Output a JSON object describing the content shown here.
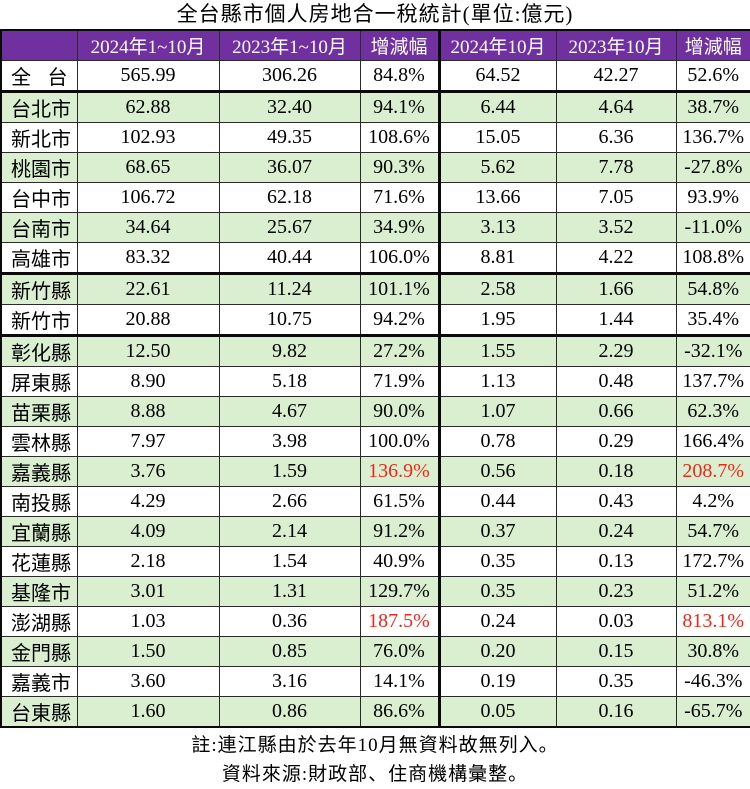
{
  "title": "全台縣市個人房地合一稅統計(單位:億元)",
  "chart_data": {
    "type": "table",
    "title": "全台縣市個人房地合一稅統計(單位:億元)",
    "unit": "億元",
    "columns": [
      "",
      "2024年1~10月",
      "2023年1~10月",
      "增減幅",
      "2024年10月",
      "2023年10月",
      "增減幅"
    ],
    "rows": [
      {
        "label": "全台",
        "cells": [
          "565.99",
          "306.26",
          "84.8%",
          "64.52",
          "42.27",
          "52.6%"
        ],
        "red_cells": [],
        "thick_bottom": true
      },
      {
        "label": "台北市",
        "cells": [
          "62.88",
          "32.40",
          "94.1%",
          "6.44",
          "4.64",
          "38.7%"
        ],
        "red_cells": [],
        "thick_bottom": false
      },
      {
        "label": "新北市",
        "cells": [
          "102.93",
          "49.35",
          "108.6%",
          "15.05",
          "6.36",
          "136.7%"
        ],
        "red_cells": [],
        "thick_bottom": false
      },
      {
        "label": "桃園市",
        "cells": [
          "68.65",
          "36.07",
          "90.3%",
          "5.62",
          "7.78",
          "-27.8%"
        ],
        "red_cells": [],
        "thick_bottom": false
      },
      {
        "label": "台中市",
        "cells": [
          "106.72",
          "62.18",
          "71.6%",
          "13.66",
          "7.05",
          "93.9%"
        ],
        "red_cells": [],
        "thick_bottom": false
      },
      {
        "label": "台南市",
        "cells": [
          "34.64",
          "25.67",
          "34.9%",
          "3.13",
          "3.52",
          "-11.0%"
        ],
        "red_cells": [],
        "thick_bottom": false
      },
      {
        "label": "高雄市",
        "cells": [
          "83.32",
          "40.44",
          "106.0%",
          "8.81",
          "4.22",
          "108.8%"
        ],
        "red_cells": [],
        "thick_bottom": true
      },
      {
        "label": "新竹縣",
        "cells": [
          "22.61",
          "11.24",
          "101.1%",
          "2.58",
          "1.66",
          "54.8%"
        ],
        "red_cells": [],
        "thick_bottom": false
      },
      {
        "label": "新竹市",
        "cells": [
          "20.88",
          "10.75",
          "94.2%",
          "1.95",
          "1.44",
          "35.4%"
        ],
        "red_cells": [],
        "thick_bottom": true
      },
      {
        "label": "彰化縣",
        "cells": [
          "12.50",
          "9.82",
          "27.2%",
          "1.55",
          "2.29",
          "-32.1%"
        ],
        "red_cells": [],
        "thick_bottom": false
      },
      {
        "label": "屏東縣",
        "cells": [
          "8.90",
          "5.18",
          "71.9%",
          "1.13",
          "0.48",
          "137.7%"
        ],
        "red_cells": [],
        "thick_bottom": false
      },
      {
        "label": "苗栗縣",
        "cells": [
          "8.88",
          "4.67",
          "90.0%",
          "1.07",
          "0.66",
          "62.3%"
        ],
        "red_cells": [],
        "thick_bottom": false
      },
      {
        "label": "雲林縣",
        "cells": [
          "7.97",
          "3.98",
          "100.0%",
          "0.78",
          "0.29",
          "166.4%"
        ],
        "red_cells": [],
        "thick_bottom": false
      },
      {
        "label": "嘉義縣",
        "cells": [
          "3.76",
          "1.59",
          "136.9%",
          "0.56",
          "0.18",
          "208.7%"
        ],
        "red_cells": [
          2,
          5
        ],
        "thick_bottom": false
      },
      {
        "label": "南投縣",
        "cells": [
          "4.29",
          "2.66",
          "61.5%",
          "0.44",
          "0.43",
          "4.2%"
        ],
        "red_cells": [],
        "thick_bottom": false
      },
      {
        "label": "宜蘭縣",
        "cells": [
          "4.09",
          "2.14",
          "91.2%",
          "0.37",
          "0.24",
          "54.7%"
        ],
        "red_cells": [],
        "thick_bottom": false
      },
      {
        "label": "花蓮縣",
        "cells": [
          "2.18",
          "1.54",
          "40.9%",
          "0.35",
          "0.13",
          "172.7%"
        ],
        "red_cells": [],
        "thick_bottom": false
      },
      {
        "label": "基隆市",
        "cells": [
          "3.01",
          "1.31",
          "129.7%",
          "0.35",
          "0.23",
          "51.2%"
        ],
        "red_cells": [],
        "thick_bottom": false
      },
      {
        "label": "澎湖縣",
        "cells": [
          "1.03",
          "0.36",
          "187.5%",
          "0.24",
          "0.03",
          "813.1%"
        ],
        "red_cells": [
          2,
          5
        ],
        "thick_bottom": false
      },
      {
        "label": "金門縣",
        "cells": [
          "1.50",
          "0.85",
          "76.0%",
          "0.20",
          "0.15",
          "30.8%"
        ],
        "red_cells": [],
        "thick_bottom": false
      },
      {
        "label": "嘉義市",
        "cells": [
          "3.60",
          "3.16",
          "14.1%",
          "0.19",
          "0.35",
          "-46.3%"
        ],
        "red_cells": [],
        "thick_bottom": false
      },
      {
        "label": "台東縣",
        "cells": [
          "1.60",
          "0.86",
          "86.6%",
          "0.05",
          "0.16",
          "-65.7%"
        ],
        "red_cells": [],
        "thick_bottom": false
      }
    ],
    "footnotes": [
      "註:連江縣由於去年10月無資料故無列入。",
      "資料來源:財政部、住商機構彙整。"
    ]
  },
  "colors": {
    "header_bg": "#7030A0",
    "header_text": "#FFFFFF",
    "row_green": "#DAEFD0",
    "row_white": "#FFFFFF",
    "highlight_red": "#E8291C",
    "border": "#2A2A2A"
  }
}
